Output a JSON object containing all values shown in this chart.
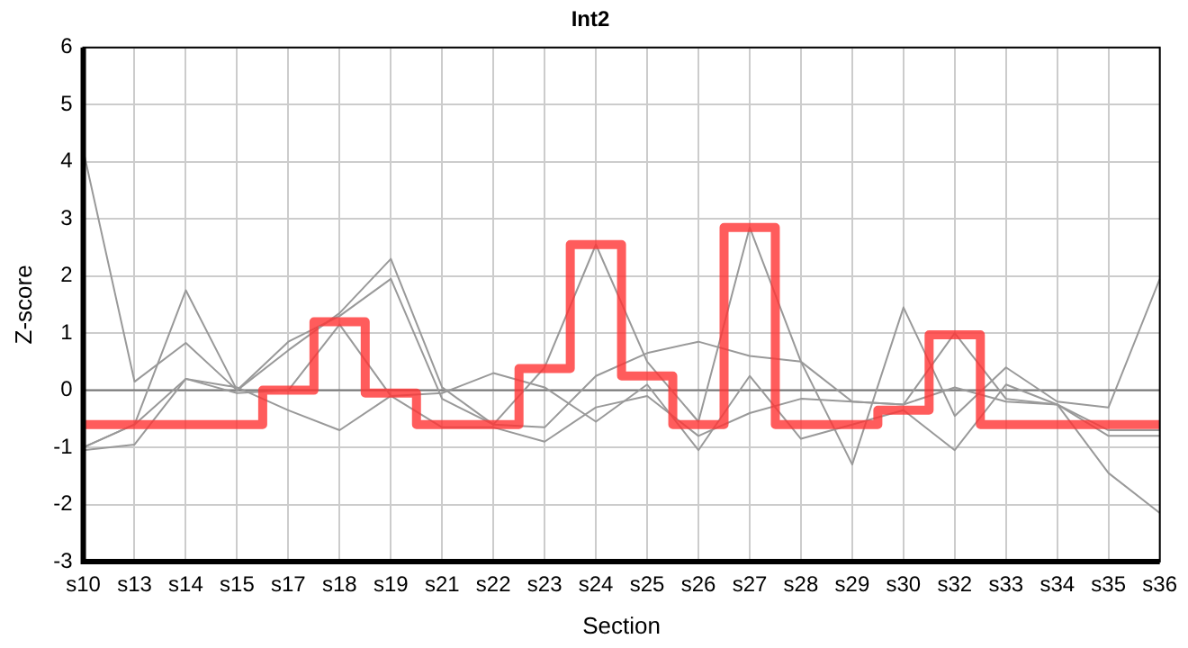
{
  "chart_data": {
    "type": "line",
    "title": "Int2",
    "xlabel": "Section",
    "ylabel": "Z-score",
    "categories": [
      "s10",
      "s13",
      "s14",
      "s15",
      "s17",
      "s18",
      "s19",
      "s21",
      "s22",
      "s23",
      "s24",
      "s25",
      "s26",
      "s27",
      "s28",
      "s29",
      "s30",
      "s32",
      "s33",
      "s34",
      "s35",
      "s36"
    ],
    "series": [
      {
        "color": "#999999",
        "values": [
          4.2,
          0.15,
          0.83,
          0.0,
          0.85,
          1.3,
          1.95,
          -0.15,
          -0.6,
          0.4,
          2.55,
          0.5,
          -0.55,
          2.85,
          0.5,
          -1.3,
          1.45,
          -0.45,
          0.4,
          -0.2,
          -0.3,
          1.95
        ]
      },
      {
        "color": "#999999",
        "values": [
          -1.0,
          -0.6,
          1.75,
          0.0,
          0.7,
          1.35,
          2.3,
          0.05,
          -0.6,
          -0.65,
          0.25,
          0.65,
          0.85,
          0.6,
          0.5,
          -0.2,
          -0.25,
          1.0,
          -0.15,
          -0.25,
          -0.7,
          -0.7
        ]
      },
      {
        "color": "#999999",
        "values": [
          -1.05,
          -0.95,
          0.2,
          0.05,
          -0.35,
          -0.7,
          -0.1,
          -0.05,
          0.3,
          0.05,
          -0.55,
          0.1,
          -1.05,
          0.25,
          -0.85,
          -0.6,
          -0.35,
          -1.05,
          0.1,
          -0.25,
          -1.45,
          -2.15
        ]
      },
      {
        "color": "#999999",
        "values": [
          -1.0,
          -0.6,
          0.2,
          -0.05,
          0.0,
          1.15,
          -0.1,
          -0.65,
          -0.65,
          -0.9,
          -0.3,
          -0.1,
          -0.8,
          -0.4,
          -0.15,
          -0.2,
          -0.25,
          0.05,
          -0.2,
          -0.25,
          -0.8,
          -0.8
        ]
      },
      {
        "type": "step",
        "color": "#ff3333",
        "values": [
          -0.6,
          -0.6,
          -0.6,
          -0.6,
          0.0,
          1.2,
          -0.05,
          -0.6,
          -0.6,
          0.38,
          2.55,
          0.25,
          -0.6,
          2.85,
          -0.6,
          -0.6,
          -0.35,
          0.97,
          -0.6,
          -0.6,
          -0.6,
          -0.6
        ]
      }
    ],
    "ylim": [
      -3,
      6
    ],
    "yticks": [
      -3,
      -2,
      -1,
      0,
      1,
      2,
      3,
      4,
      5,
      6
    ],
    "ref_lines": [
      {
        "axis": "y",
        "value": 0,
        "color": "#777777"
      }
    ],
    "grid": true,
    "legend": false,
    "marker": "none",
    "line_style": "solid"
  }
}
